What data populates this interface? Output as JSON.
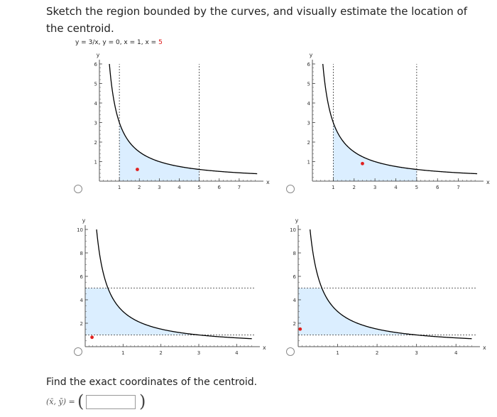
{
  "problem": {
    "instruction": "Sketch the region bounded by the curves, and visually estimate the location of the centroid.",
    "equations": "y = 3/x, y = 0, x = 1, x = ",
    "equation_highlight": "5"
  },
  "choices": [
    {
      "id": "A",
      "region": "under_curve",
      "centroid_dot": [
        1.9,
        0.6
      ],
      "chart_data": {
        "type": "line",
        "xlabel": "x",
        "ylabel": "y",
        "xlim": [
          0,
          8
        ],
        "ylim": [
          0,
          6
        ],
        "x_ticks": [
          "1",
          "2",
          "3",
          "4",
          "5",
          "6",
          "7"
        ],
        "y_ticks": [
          "1",
          "2",
          "3",
          "4",
          "5",
          "6"
        ],
        "series": [
          {
            "values_fn": "3/x",
            "x_range": [
              0.15,
              7.9
            ]
          }
        ],
        "verticals": [
          1,
          5
        ],
        "shaded": {
          "x": [
            1,
            5
          ],
          "below": "3/x"
        }
      }
    },
    {
      "id": "B",
      "region": "under_curve",
      "centroid_dot": [
        2.4,
        0.9
      ],
      "chart_data": {
        "type": "line",
        "xlabel": "x",
        "ylabel": "y",
        "xlim": [
          0,
          8
        ],
        "ylim": [
          0,
          6
        ],
        "x_ticks": [
          "1",
          "2",
          "3",
          "4",
          "5",
          "6",
          "7"
        ],
        "y_ticks": [
          "1",
          "2",
          "3",
          "4",
          "5",
          "6"
        ],
        "series": [
          {
            "values_fn": "3/x",
            "x_range": [
              0.15,
              7.9
            ]
          }
        ],
        "verticals": [
          1,
          5
        ],
        "shaded": {
          "x": [
            1,
            5
          ],
          "below": "3/x"
        }
      }
    },
    {
      "id": "C",
      "region": "left_of_curve",
      "centroid_dot": [
        0.18,
        0.8
      ],
      "chart_data": {
        "type": "line",
        "xlabel": "x",
        "ylabel": "y",
        "xlim": [
          0,
          4.5
        ],
        "ylim": [
          0,
          10
        ],
        "x_ticks": [
          "1",
          "2",
          "3",
          "4"
        ],
        "y_ticks": [
          "2",
          "4",
          "6",
          "8",
          "10"
        ],
        "series": [
          {
            "values_fn": "3/x",
            "x_range": [
              0.3,
              4.4
            ]
          }
        ],
        "horizontals": [
          1,
          5
        ],
        "shaded": {
          "y": [
            1,
            5
          ],
          "left_of": "3/y"
        }
      }
    },
    {
      "id": "D",
      "region": "left_of_curve",
      "centroid_dot": [
        0.05,
        1.5
      ],
      "chart_data": {
        "type": "line",
        "xlabel": "x",
        "ylabel": "y",
        "xlim": [
          0,
          4.5
        ],
        "ylim": [
          0,
          10
        ],
        "x_ticks": [
          "1",
          "2",
          "3",
          "4"
        ],
        "y_ticks": [
          "2",
          "4",
          "6",
          "8",
          "10"
        ],
        "series": [
          {
            "values_fn": "3/x",
            "x_range": [
              0.3,
              4.4
            ]
          }
        ],
        "horizontals": [
          1,
          5
        ],
        "shaded": {
          "y": [
            1,
            5
          ],
          "left_of": "3/y"
        }
      }
    }
  ],
  "find": {
    "text": "Find the exact coordinates of the centroid.",
    "label": "(x̄, ȳ) =",
    "open_paren": "(",
    "close_paren": ")",
    "input_value": ""
  },
  "colors": {
    "shade": "#dbeeff",
    "curve": "#000000",
    "dot": "#e02020",
    "dashed": "#333333"
  }
}
